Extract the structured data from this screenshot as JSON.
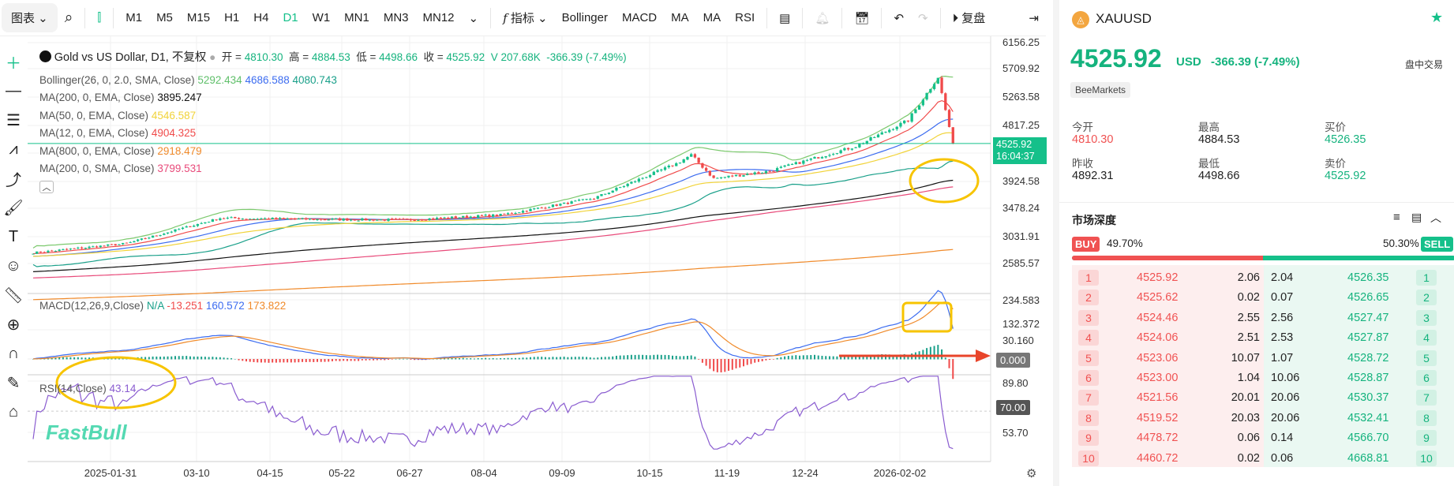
{
  "toolbar": {
    "chart_menu": "图表",
    "timeframes": [
      "M1",
      "M5",
      "M15",
      "H1",
      "H4",
      "D1",
      "W1",
      "MN1",
      "MN3",
      "MN12"
    ],
    "active_timeframe": "D1",
    "indicators_label": "指标",
    "indicator_shortcuts": [
      "Bollinger",
      "MACD",
      "MA",
      "MA",
      "RSI"
    ],
    "replay_label": "复盘"
  },
  "legend": {
    "symbol_title": "Gold vs US Dollar, D1, 不复权",
    "open_label": "开 =",
    "open": "4810.30",
    "high_label": "高 =",
    "high": "4884.53",
    "low_label": "低 =",
    "low": "4498.66",
    "close_label": "收 =",
    "close": "4525.92",
    "volume": "V 207.68K",
    "change": "-366.39 (-7.49%)",
    "indicators": [
      {
        "name": "Bollinger(26, 0, 2.0, SMA, Close)",
        "values": [
          "5292.434",
          "4686.588",
          "4080.743"
        ]
      },
      {
        "name": "MA(200, 0, EMA, Close)",
        "values": [
          "3895.247"
        ]
      },
      {
        "name": "MA(50, 0, EMA, Close)",
        "values": [
          "4546.587"
        ]
      },
      {
        "name": "MA(12, 0, EMA, Close)",
        "values": [
          "4904.325"
        ]
      },
      {
        "name": "MA(800, 0, EMA, Close)",
        "values": [
          "2918.479"
        ]
      },
      {
        "name": "MA(200, 0, SMA, Close)",
        "values": [
          "3799.531"
        ]
      }
    ],
    "macd": {
      "name": "MACD(12,26,9,Close)",
      "values": [
        "N/A",
        "-13.251",
        "160.572",
        "173.822"
      ]
    },
    "rsi": {
      "name": "RSI(14,Close)",
      "value": "43.14"
    }
  },
  "price_axis": [
    "6156.25",
    "5709.92",
    "5263.58",
    "4817.25",
    "3924.58",
    "3478.24",
    "3031.91",
    "2585.57"
  ],
  "price_tag": {
    "price": "4525.92",
    "time": "16:04:37"
  },
  "macd_axis": [
    "234.583",
    "132.372",
    "30.160"
  ],
  "macd_tag": "0.000",
  "rsi_axis": [
    "89.80",
    "53.70"
  ],
  "rsi_tag": "70.00",
  "x_axis": [
    "2025-01-31",
    "03-10",
    "04-15",
    "05-22",
    "06-27",
    "08-04",
    "09-09",
    "10-15",
    "11-19",
    "12-24",
    "2026-02-02"
  ],
  "watermark": "FastBull",
  "colors": {
    "up": "#15c08a",
    "down": "#f04a4a",
    "accent": "#15c08a"
  },
  "series_anchors": [
    [
      0,
      2760
    ],
    [
      25,
      2910
    ],
    [
      50,
      3320
    ],
    [
      75,
      3300
    ],
    [
      100,
      3290
    ],
    [
      125,
      3370
    ],
    [
      150,
      3640
    ],
    [
      172,
      4200
    ],
    [
      176,
      4340
    ],
    [
      182,
      3960
    ],
    [
      197,
      4080
    ],
    [
      220,
      4480
    ],
    [
      234,
      4900
    ],
    [
      242,
      5600
    ],
    [
      246,
      4525
    ]
  ],
  "panel": {
    "symbol": "XAUUSD",
    "price": "4525.92",
    "currency": "USD",
    "change": "-366.39 (-7.49%)",
    "session": "盘中交易",
    "broker": "BeeMarkets",
    "stats": [
      {
        "label": "今开",
        "value": "4810.30"
      },
      {
        "label": "最高",
        "value": "4884.53"
      },
      {
        "label": "买价",
        "value": "4526.35"
      },
      {
        "label": "昨收",
        "value": "4892.31"
      },
      {
        "label": "最低",
        "value": "4498.66"
      },
      {
        "label": "卖价",
        "value": "4525.92"
      }
    ],
    "depth_title": "市场深度",
    "buy_label": "BUY",
    "buy_pct": "49.70%",
    "sell_label": "SELL",
    "sell_pct": "50.30%",
    "buy_fraction": 0.497,
    "book": [
      [
        "1",
        "4525.92",
        "2.06",
        "2.04",
        "4526.35",
        "1"
      ],
      [
        "2",
        "4525.62",
        "0.02",
        "0.07",
        "4526.65",
        "2"
      ],
      [
        "3",
        "4524.46",
        "2.55",
        "2.56",
        "4527.47",
        "3"
      ],
      [
        "4",
        "4524.06",
        "2.51",
        "2.53",
        "4527.87",
        "4"
      ],
      [
        "5",
        "4523.06",
        "10.07",
        "1.07",
        "4528.72",
        "5"
      ],
      [
        "6",
        "4523.00",
        "1.04",
        "10.06",
        "4528.87",
        "6"
      ],
      [
        "7",
        "4521.56",
        "20.01",
        "20.06",
        "4530.37",
        "7"
      ],
      [
        "8",
        "4519.52",
        "20.03",
        "20.06",
        "4532.41",
        "8"
      ],
      [
        "9",
        "4478.72",
        "0.06",
        "0.14",
        "4566.70",
        "9"
      ],
      [
        "10",
        "4460.72",
        "0.02",
        "0.06",
        "4668.81",
        "10"
      ]
    ]
  }
}
